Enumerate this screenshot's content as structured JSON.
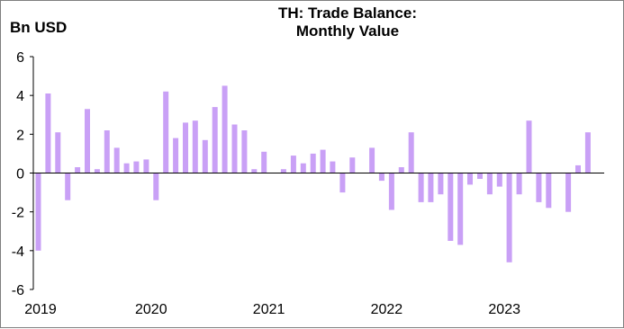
{
  "chart_data": {
    "type": "bar",
    "title_lines": [
      "TH: Trade Balance:",
      "Monthly Value"
    ],
    "unit_label": "Bn USD",
    "ylim": [
      -6,
      6
    ],
    "yticks": [
      6,
      4,
      2,
      0,
      -2,
      -4,
      -6
    ],
    "x_labels": [
      "2019",
      "2020",
      "2021",
      "2022",
      "2023"
    ],
    "x_label_month_index": [
      0,
      12,
      24,
      36,
      48
    ],
    "bar_color": "#c9a0f6",
    "grid": false,
    "months_start": "2019-01",
    "values": [
      -4.0,
      4.1,
      2.1,
      -1.4,
      0.3,
      3.3,
      0.2,
      2.2,
      1.3,
      0.5,
      0.6,
      0.7,
      -1.4,
      4.2,
      1.8,
      2.6,
      2.7,
      1.7,
      3.4,
      4.5,
      2.5,
      2.2,
      0.2,
      1.1,
      0.0,
      0.2,
      0.9,
      0.5,
      1.0,
      1.2,
      0.6,
      -1.0,
      0.8,
      0.0,
      1.3,
      -0.4,
      -1.9,
      0.3,
      2.1,
      -1.5,
      -1.5,
      -1.1,
      -3.5,
      -3.7,
      -0.6,
      -0.3,
      -1.1,
      -0.7,
      -4.6,
      -1.1,
      2.7,
      -1.5,
      -1.8,
      0.0,
      -2.0,
      0.4,
      2.1
    ]
  }
}
